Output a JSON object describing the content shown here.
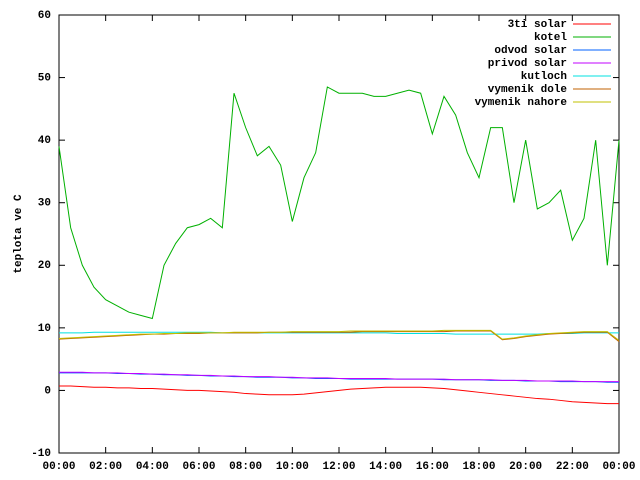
{
  "chart_data": {
    "type": "line",
    "ylabel": "teplota ve C",
    "x": [
      0,
      0.5,
      1,
      1.5,
      2,
      2.5,
      3,
      3.5,
      4,
      4.5,
      5,
      5.5,
      6,
      6.5,
      7,
      7.5,
      8,
      8.5,
      9,
      9.5,
      10,
      10.5,
      11,
      11.5,
      12,
      12.5,
      13,
      13.5,
      14,
      14.5,
      15,
      15.5,
      16,
      16.5,
      17,
      17.5,
      18,
      18.5,
      19,
      19.5,
      20,
      20.5,
      21,
      21.5,
      22,
      22.5,
      23,
      23.5,
      24
    ],
    "xlim": [
      0,
      24
    ],
    "xticks": [
      {
        "value": 0,
        "label": "00:00"
      },
      {
        "value": 2,
        "label": "02:00"
      },
      {
        "value": 4,
        "label": "04:00"
      },
      {
        "value": 6,
        "label": "06:00"
      },
      {
        "value": 8,
        "label": "08:00"
      },
      {
        "value": 10,
        "label": "10:00"
      },
      {
        "value": 12,
        "label": "12:00"
      },
      {
        "value": 14,
        "label": "14:00"
      },
      {
        "value": 16,
        "label": "16:00"
      },
      {
        "value": 18,
        "label": "18:00"
      },
      {
        "value": 20,
        "label": "20:00"
      },
      {
        "value": 22,
        "label": "22:00"
      },
      {
        "value": 24,
        "label": "00:00"
      }
    ],
    "ylim": [
      -10,
      60
    ],
    "yticks": [
      -10,
      0,
      10,
      20,
      30,
      40,
      50,
      60
    ],
    "grid": false,
    "legend_position": "upper right",
    "series": [
      {
        "name": "3ti solar",
        "color": "#ff0000",
        "values": [
          0.7,
          0.7,
          0.6,
          0.5,
          0.5,
          0.4,
          0.4,
          0.3,
          0.3,
          0.2,
          0.1,
          0.0,
          0.0,
          -0.1,
          -0.2,
          -0.3,
          -0.5,
          -0.6,
          -0.7,
          -0.7,
          -0.7,
          -0.6,
          -0.4,
          -0.2,
          0.0,
          0.2,
          0.3,
          0.4,
          0.5,
          0.5,
          0.5,
          0.5,
          0.4,
          0.3,
          0.1,
          -0.1,
          -0.3,
          -0.5,
          -0.7,
          -0.9,
          -1.1,
          -1.3,
          -1.4,
          -1.6,
          -1.8,
          -1.9,
          -2.0,
          -2.1,
          -2.1
        ]
      },
      {
        "name": "kotel",
        "color": "#00b000",
        "values": [
          39,
          26,
          20,
          16.5,
          14.5,
          13.5,
          12.5,
          12,
          11.5,
          20,
          23.5,
          26,
          26.5,
          27.5,
          26,
          47.5,
          42,
          37.5,
          39,
          36,
          27,
          34,
          38,
          48.5,
          47.5,
          47.5,
          47.5,
          47,
          47,
          47.5,
          48,
          47.5,
          41,
          47,
          44,
          38,
          34,
          42,
          42,
          30,
          40,
          29,
          30,
          32,
          24,
          27.5,
          40,
          20,
          40
        ]
      },
      {
        "name": "odvod solar",
        "color": "#0060ff",
        "values": [
          2.8,
          2.8,
          2.8,
          2.8,
          2.8,
          2.7,
          2.7,
          2.6,
          2.6,
          2.5,
          2.5,
          2.4,
          2.4,
          2.3,
          2.3,
          2.2,
          2.2,
          2.1,
          2.1,
          2.1,
          2.0,
          2.0,
          1.9,
          1.9,
          1.9,
          1.8,
          1.8,
          1.8,
          1.8,
          1.8,
          1.8,
          1.8,
          1.8,
          1.7,
          1.7,
          1.7,
          1.7,
          1.6,
          1.6,
          1.6,
          1.5,
          1.5,
          1.5,
          1.4,
          1.4,
          1.4,
          1.4,
          1.3,
          1.3
        ]
      },
      {
        "name": "privod solar",
        "color": "#c000ff",
        "values": [
          2.9,
          2.9,
          2.9,
          2.8,
          2.8,
          2.8,
          2.7,
          2.7,
          2.6,
          2.6,
          2.5,
          2.5,
          2.4,
          2.4,
          2.3,
          2.3,
          2.2,
          2.2,
          2.2,
          2.1,
          2.1,
          2.0,
          2.0,
          2.0,
          1.9,
          1.9,
          1.9,
          1.9,
          1.9,
          1.8,
          1.8,
          1.8,
          1.8,
          1.8,
          1.7,
          1.7,
          1.7,
          1.7,
          1.6,
          1.6,
          1.6,
          1.5,
          1.5,
          1.5,
          1.5,
          1.4,
          1.4,
          1.4,
          1.4
        ]
      },
      {
        "name": "kutloch",
        "color": "#00e0e0",
        "values": [
          9.2,
          9.2,
          9.2,
          9.3,
          9.3,
          9.3,
          9.3,
          9.3,
          9.3,
          9.3,
          9.3,
          9.3,
          9.3,
          9.3,
          9.2,
          9.2,
          9.2,
          9.2,
          9.2,
          9.2,
          9.2,
          9.2,
          9.2,
          9.2,
          9.2,
          9.2,
          9.2,
          9.2,
          9.2,
          9.1,
          9.1,
          9.1,
          9.1,
          9.1,
          9.0,
          9.0,
          9.0,
          9.0,
          9.0,
          9.0,
          9.0,
          9.0,
          9.1,
          9.1,
          9.1,
          9.2,
          9.2,
          9.2,
          9.2
        ]
      },
      {
        "name": "vymenik dole",
        "color": "#c06000",
        "values": [
          8.2,
          8.3,
          8.4,
          8.5,
          8.6,
          8.7,
          8.8,
          8.9,
          9.0,
          9.0,
          9.1,
          9.1,
          9.1,
          9.2,
          9.2,
          9.2,
          9.2,
          9.2,
          9.3,
          9.3,
          9.3,
          9.3,
          9.3,
          9.3,
          9.3,
          9.3,
          9.4,
          9.4,
          9.4,
          9.4,
          9.4,
          9.4,
          9.4,
          9.4,
          9.5,
          9.5,
          9.5,
          9.5,
          8.1,
          8.3,
          8.6,
          8.8,
          9.0,
          9.1,
          9.2,
          9.3,
          9.3,
          9.3,
          7.8
        ]
      },
      {
        "name": "vymenik nahore",
        "color": "#c0c000",
        "values": [
          8.3,
          8.4,
          8.5,
          8.6,
          8.7,
          8.8,
          8.9,
          9.0,
          9.0,
          9.1,
          9.1,
          9.2,
          9.2,
          9.2,
          9.2,
          9.3,
          9.3,
          9.3,
          9.3,
          9.3,
          9.4,
          9.4,
          9.4,
          9.4,
          9.4,
          9.5,
          9.5,
          9.5,
          9.5,
          9.5,
          9.5,
          9.5,
          9.5,
          9.6,
          9.6,
          9.6,
          9.6,
          9.6,
          8.2,
          8.4,
          8.7,
          8.9,
          9.1,
          9.2,
          9.3,
          9.4,
          9.4,
          9.4,
          8.0
        ]
      }
    ]
  }
}
